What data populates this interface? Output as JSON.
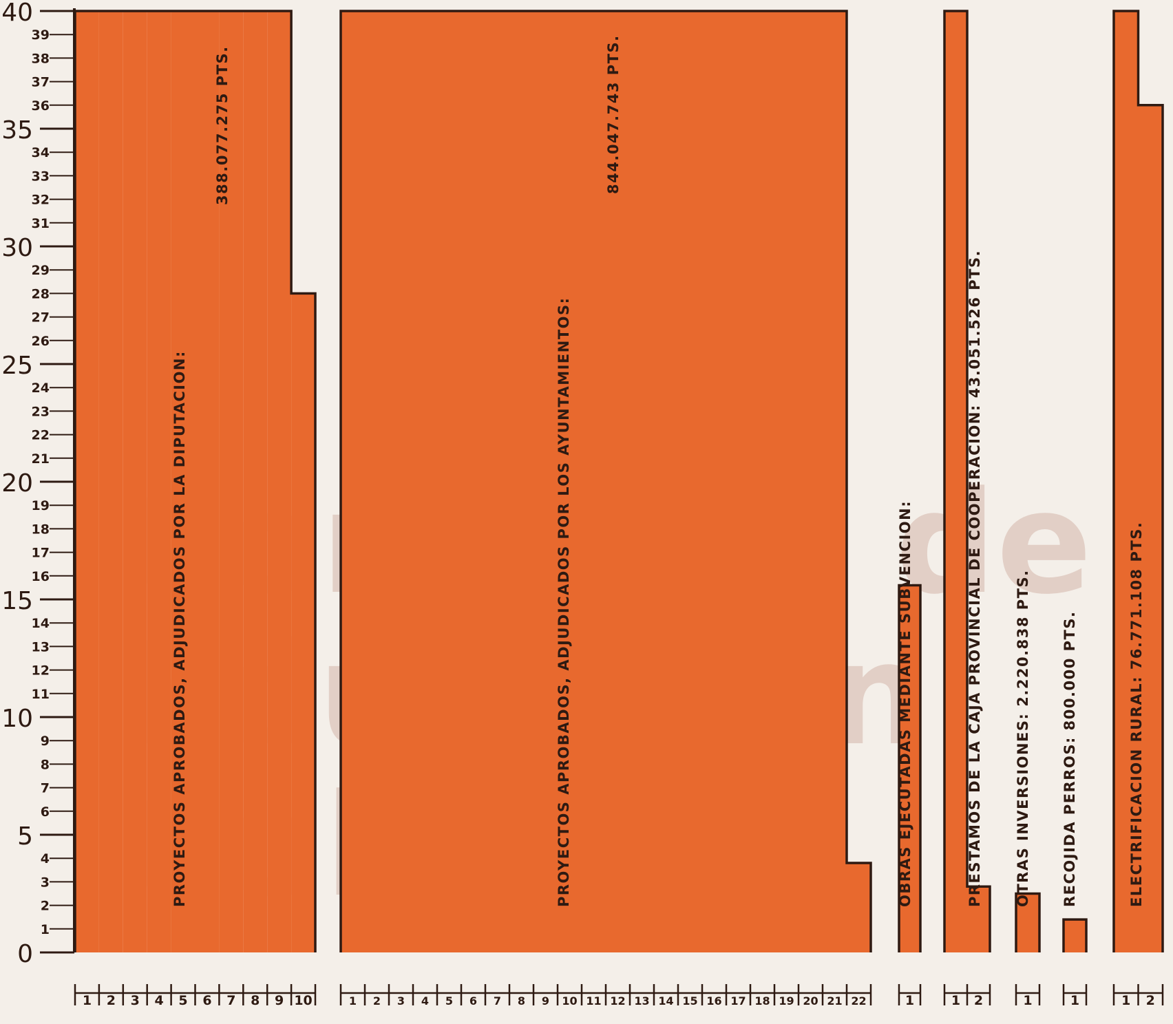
{
  "chart_data": {
    "type": "bar",
    "title": "",
    "xlabel": "",
    "ylabel": "",
    "ylim": [
      0,
      40
    ],
    "grid": false,
    "y_ticks_major": [
      0,
      5,
      10,
      15,
      20,
      25,
      30,
      35,
      40
    ],
    "y_ticks_minor": [
      1,
      2,
      3,
      4,
      6,
      7,
      8,
      9,
      11,
      12,
      13,
      14,
      16,
      17,
      18,
      19,
      21,
      22,
      23,
      24,
      26,
      27,
      28,
      29,
      31,
      32,
      33,
      34,
      36,
      37,
      38,
      39
    ],
    "bar_color": "#e8692e",
    "outline_color": "#2e1a12",
    "background_color": "#f4efe9",
    "groups": [
      {
        "id": "diputacion",
        "label": "PROYECTOS APROBADOS, ADJUDICADOS POR LA DIPUTACION:",
        "amount": "388.077.275 PTS.",
        "units": 10,
        "unit_labels": [
          "1",
          "2",
          "3",
          "4",
          "5",
          "6",
          "7",
          "8",
          "9",
          "10"
        ],
        "values": [
          40,
          40,
          40,
          40,
          40,
          40,
          40,
          40,
          40,
          28
        ]
      },
      {
        "id": "ayuntamientos",
        "label": "PROYECTOS APROBADOS, ADJUDICADOS POR LOS AYUNTAMIENTOS:",
        "amount": "844.047.743 PTS.",
        "units": 22,
        "unit_labels": [
          "1",
          "2",
          "3",
          "4",
          "5",
          "6",
          "7",
          "8",
          "9",
          "10",
          "11",
          "12",
          "13",
          "14",
          "15",
          "16",
          "17",
          "18",
          "19",
          "20",
          "21",
          "22"
        ],
        "values": [
          40,
          40,
          40,
          40,
          40,
          40,
          40,
          40,
          40,
          40,
          40,
          40,
          40,
          40,
          40,
          40,
          40,
          40,
          40,
          40,
          40,
          3.8
        ]
      },
      {
        "id": "subvencion",
        "label": "OBRAS EJECUTADAS MEDIANTE SUBVENCION:",
        "amount": "",
        "units": 1,
        "unit_labels": [
          "1"
        ],
        "values": [
          15.6
        ]
      },
      {
        "id": "caja",
        "label": "PRESTAMOS DE LA CAJA PROVINCIAL DE COOPERACION:",
        "amount": "43.051.526 PTS.",
        "units": 2,
        "unit_labels": [
          "1",
          "2"
        ],
        "values": [
          40,
          2.8
        ]
      },
      {
        "id": "inversiones",
        "label": "OTRAS INVERSIONES:",
        "amount": "2.220.838 PTS.",
        "units": 1,
        "unit_labels": [
          "1"
        ],
        "values": [
          2.5
        ]
      },
      {
        "id": "perros",
        "label": "RECOJIDA PERROS:",
        "amount": "800.000 PTS.",
        "units": 1,
        "unit_labels": [
          "1"
        ],
        "values": [
          1.4
        ]
      },
      {
        "id": "electrificacion",
        "label": "ELECTRIFICACION RURAL:",
        "amount": "76.771.108 PTS.",
        "units": 2,
        "unit_labels": [
          "1",
          "2"
        ],
        "values": [
          40,
          36
        ]
      }
    ],
    "watermark": [
      "Comisión de",
      "Educación",
      "Cultura"
    ]
  }
}
